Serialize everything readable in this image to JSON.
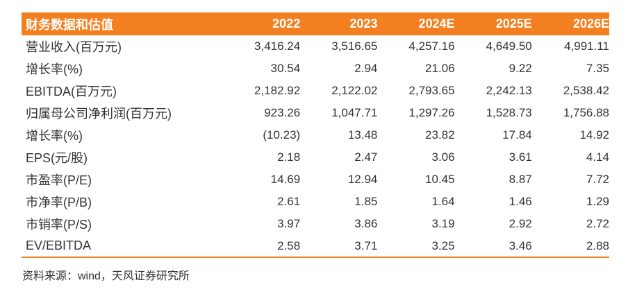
{
  "table": {
    "header": [
      "财务数据和估值",
      "2022",
      "2023",
      "2024E",
      "2025E",
      "2026E"
    ],
    "rows": [
      [
        "营业收入(百万元)",
        "3,416.24",
        "3,516.65",
        "4,257.16",
        "4,649.50",
        "4,991.11"
      ],
      [
        "增长率(%)",
        "30.54",
        "2.94",
        "21.06",
        "9.22",
        "7.35"
      ],
      [
        "EBITDA(百万元)",
        "2,182.92",
        "2,122.02",
        "2,793.65",
        "2,242.13",
        "2,538.42"
      ],
      [
        "归属母公司净利润(百万元)",
        "923.26",
        "1,047.71",
        "1,297.26",
        "1,528.73",
        "1,756.88"
      ],
      [
        "增长率(%)",
        "(10.23)",
        "13.48",
        "23.82",
        "17.84",
        "14.92"
      ],
      [
        "EPS(元/股)",
        "2.18",
        "2.47",
        "3.06",
        "3.61",
        "4.14"
      ],
      [
        "市盈率(P/E)",
        "14.69",
        "12.94",
        "10.45",
        "8.87",
        "7.72"
      ],
      [
        "市净率(P/B)",
        "2.61",
        "1.85",
        "1.64",
        "1.46",
        "1.29"
      ],
      [
        "市销率(P/S)",
        "3.97",
        "3.86",
        "3.19",
        "2.92",
        "2.72"
      ],
      [
        "EV/EBITDA",
        "2.58",
        "3.71",
        "3.25",
        "3.46",
        "2.88"
      ]
    ]
  },
  "source": "资料来源：wind，天风证券研究所",
  "colors": {
    "header_bg": "#f47f20",
    "header_text": "#ffffff",
    "body_text": "#333333",
    "rule": "#f47f20"
  }
}
